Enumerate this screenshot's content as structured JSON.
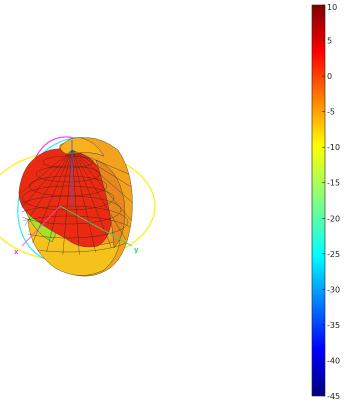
{
  "chart_data": {
    "type": "3d-radiation-pattern",
    "title": "",
    "axes": {
      "x": {
        "label": "x",
        "color": "#ff44cc"
      },
      "y": {
        "label": "y",
        "color": "#33dd66"
      },
      "z": {
        "label": "z",
        "color": "#3366ff"
      }
    },
    "rings": [
      {
        "name": "azimuth-ring",
        "color": "#ffee00"
      },
      {
        "name": "elevation-ring-1",
        "color": "#ff33ee"
      },
      {
        "name": "elevation-ring-2",
        "color": "#33e8ff"
      }
    ],
    "colorbar": {
      "min": -45,
      "max": 10,
      "ticks": [
        10,
        5,
        0,
        -5,
        -10,
        -15,
        -20,
        -25,
        -30,
        -35,
        -40,
        -45
      ],
      "colormap": "jet"
    }
  }
}
